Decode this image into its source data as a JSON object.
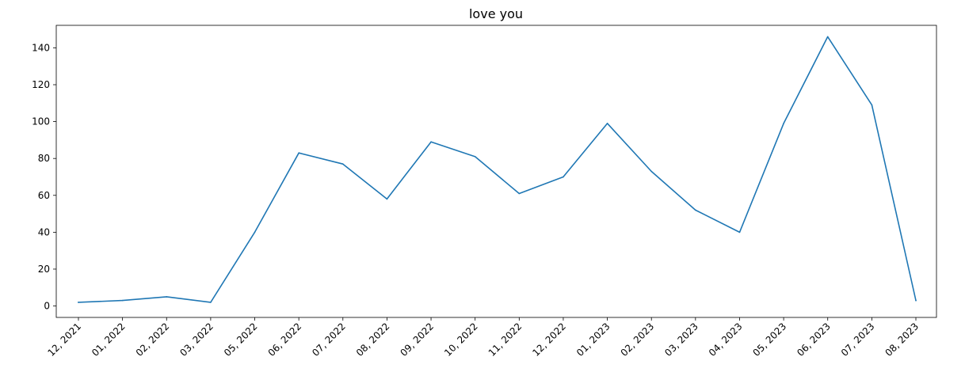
{
  "chart_data": {
    "type": "line",
    "title": "love you",
    "xlabel": "",
    "ylabel": "",
    "categories": [
      "12, 2021",
      "01, 2022",
      "02, 2022",
      "03, 2022",
      "05, 2022",
      "06, 2022",
      "07, 2022",
      "08, 2022",
      "09, 2022",
      "10, 2022",
      "11, 2022",
      "12, 2022",
      "01, 2023",
      "02, 2023",
      "03, 2023",
      "04, 2023",
      "05, 2023",
      "06, 2023",
      "07, 2023",
      "08, 2023"
    ],
    "series": [
      {
        "values": [
          2,
          3,
          5,
          2,
          40,
          83,
          77,
          58,
          89,
          81,
          61,
          70,
          99,
          73,
          52,
          40,
          99,
          146,
          109,
          3
        ]
      }
    ],
    "yticks": [
      0,
      20,
      40,
      60,
      80,
      100,
      120,
      140
    ],
    "ylim": [
      -6.2,
      152.2
    ],
    "grid": false,
    "legend": "none",
    "colors": {
      "line": "#1f77b4"
    }
  }
}
